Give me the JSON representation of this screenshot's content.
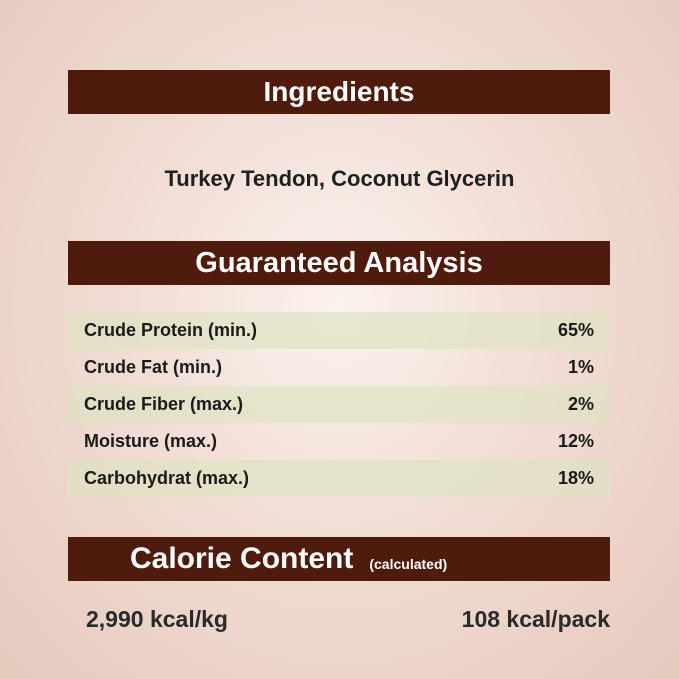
{
  "ingredients": {
    "title": "Ingredients",
    "text": "Turkey Tendon, Coconut Glycerin"
  },
  "analysis": {
    "title": "Guaranteed Analysis",
    "rows": [
      {
        "label": "Crude Protein (min.)",
        "value": "65%"
      },
      {
        "label": "Crude Fat (min.)",
        "value": "1%"
      },
      {
        "label": "Crude Fiber (max.)",
        "value": "2%"
      },
      {
        "label": "Moisture (max.)",
        "value": "12%"
      },
      {
        "label": "Carbohydrat (max.)",
        "value": "18%"
      }
    ]
  },
  "calorie": {
    "title": "Calorie Content",
    "note": "(calculated)",
    "per_kg": "2,990 kcal/kg",
    "per_pack": "108 kcal/pack"
  },
  "colors": {
    "header_bar": "#4f1b0d",
    "row_shade": "#dee2c3"
  }
}
